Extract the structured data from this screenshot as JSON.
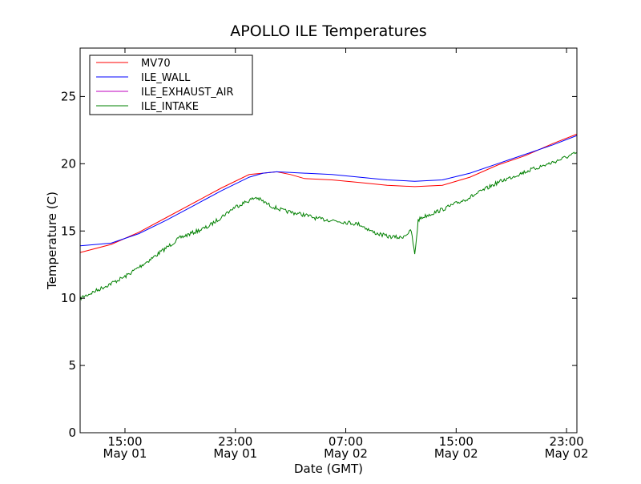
{
  "chart_data": {
    "type": "line",
    "title": "APOLLO ILE Temperatures",
    "xlabel": "Date (GMT)",
    "ylabel": "Temperature (C)",
    "ylim": [
      0,
      28.6
    ],
    "xlim": [
      "2011-05-01 11:45",
      "2011-05-02 23:45"
    ],
    "x_ticks": [
      {
        "x": "2011-05-01 15:00",
        "line1": "15:00",
        "line2": "May 01"
      },
      {
        "x": "2011-05-01 23:00",
        "line1": "23:00",
        "line2": "May 01"
      },
      {
        "x": "2011-05-02 07:00",
        "line1": "07:00",
        "line2": "May 02"
      },
      {
        "x": "2011-05-02 15:00",
        "line1": "15:00",
        "line2": "May 02"
      },
      {
        "x": "2011-05-02 23:00",
        "line1": "23:00",
        "line2": "May 02"
      }
    ],
    "y_ticks": [
      0,
      5,
      10,
      15,
      20,
      25
    ],
    "grid": false,
    "legend_position": "top-left",
    "series": [
      {
        "name": "MV70",
        "color": "#ff0000",
        "x": [
          "2011-05-01 11:45",
          "2011-05-01 14:00",
          "2011-05-01 16:00",
          "2011-05-01 18:00",
          "2011-05-01 20:00",
          "2011-05-01 22:00",
          "2011-05-02 00:00",
          "2011-05-02 01:00",
          "2011-05-02 02:00",
          "2011-05-02 03:00",
          "2011-05-02 04:00",
          "2011-05-02 06:00",
          "2011-05-02 08:00",
          "2011-05-02 10:00",
          "2011-05-02 12:00",
          "2011-05-02 14:00",
          "2011-05-02 16:00",
          "2011-05-02 18:00",
          "2011-05-02 20:00",
          "2011-05-02 22:00",
          "2011-05-02 23:45"
        ],
        "y": [
          13.4,
          14.0,
          14.9,
          16.0,
          17.1,
          18.2,
          19.2,
          19.3,
          19.4,
          19.2,
          18.9,
          18.8,
          18.6,
          18.4,
          18.3,
          18.4,
          19.0,
          19.9,
          20.6,
          21.5,
          22.2
        ]
      },
      {
        "name": "ILE_WALL",
        "color": "#0000ff",
        "x": [
          "2011-05-01 11:45",
          "2011-05-01 14:00",
          "2011-05-01 16:00",
          "2011-05-01 18:00",
          "2011-05-01 20:00",
          "2011-05-01 22:00",
          "2011-05-02 00:00",
          "2011-05-02 01:00",
          "2011-05-02 02:00",
          "2011-05-02 04:00",
          "2011-05-02 06:00",
          "2011-05-02 08:00",
          "2011-05-02 10:00",
          "2011-05-02 12:00",
          "2011-05-02 14:00",
          "2011-05-02 16:00",
          "2011-05-02 18:00",
          "2011-05-02 20:00",
          "2011-05-02 22:00",
          "2011-05-02 23:45"
        ],
        "y": [
          13.9,
          14.1,
          14.8,
          15.8,
          16.9,
          18.0,
          19.0,
          19.3,
          19.4,
          19.3,
          19.2,
          19.0,
          18.8,
          18.7,
          18.8,
          19.3,
          20.0,
          20.7,
          21.4,
          22.1
        ]
      },
      {
        "name": "ILE_EXHAUST_AIR",
        "color": "#bf00bf",
        "x": [],
        "y": []
      },
      {
        "name": "ILE_INTAKE",
        "color": "#008000",
        "noisy": true,
        "x": [
          "2011-05-01 11:45",
          "2011-05-01 13:00",
          "2011-05-01 15:00",
          "2011-05-01 17:00",
          "2011-05-01 19:00",
          "2011-05-01 21:00",
          "2011-05-01 23:00",
          "2011-05-02 00:30",
          "2011-05-02 01:30",
          "2011-05-02 02:30",
          "2011-05-02 04:00",
          "2011-05-02 05:00",
          "2011-05-02 06:00",
          "2011-05-02 08:00",
          "2011-05-02 09:00",
          "2011-05-02 10:00",
          "2011-05-02 11:00",
          "2011-05-02 11:45",
          "2011-05-02 12:00",
          "2011-05-02 12:15",
          "2011-05-02 12:30",
          "2011-05-02 14:00",
          "2011-05-02 16:00",
          "2011-05-02 18:00",
          "2011-05-02 20:00",
          "2011-05-02 22:00",
          "2011-05-02 23:45"
        ],
        "y": [
          10.0,
          10.6,
          11.6,
          13.0,
          14.5,
          15.3,
          16.8,
          17.5,
          16.9,
          16.5,
          16.2,
          15.9,
          15.8,
          15.5,
          14.9,
          14.6,
          14.5,
          15.0,
          13.2,
          15.8,
          16.0,
          16.6,
          17.5,
          18.6,
          19.4,
          20.1,
          20.8
        ]
      }
    ]
  }
}
